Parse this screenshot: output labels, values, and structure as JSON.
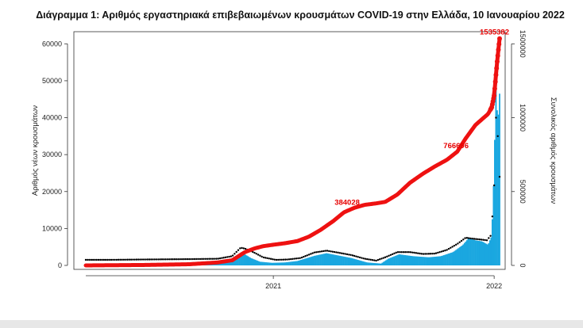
{
  "chart_data": {
    "type": "bar",
    "title": "Διάγραμμα 1: Αριθμός εργαστηριακά επιβεβαιωμένων κρουσμάτων COVID-19 στην Ελλάδα, 10 Ιανουαρίου 2022",
    "ylabel": "Αριθμός νέων κρουσμάτων",
    "y2label": "Συνολικός αριθμός κρουσμάτων",
    "ylim": [
      0,
      65000
    ],
    "y2lim": [
      0,
      1625000
    ],
    "yticks": [
      0,
      10000,
      20000,
      30000,
      40000,
      50000,
      60000
    ],
    "y2ticks": [
      0,
      500000,
      1000000,
      1500000
    ],
    "xlim": [
      "2020-02-26",
      "2022-01-10"
    ],
    "xticks": [
      {
        "date": "2021-01-01",
        "label": "2021"
      },
      {
        "date": "2022-01-01",
        "label": "2022"
      }
    ],
    "series": [
      {
        "kind": "bar",
        "axis": "left",
        "color": "#1aa7e0",
        "x": [
          "2020-03-01",
          "2020-05-01",
          "2020-07-01",
          "2020-08-15",
          "2020-10-01",
          "2020-10-20",
          "2020-11-05",
          "2020-11-12",
          "2020-11-25",
          "2020-12-10",
          "2020-12-30",
          "2021-01-20",
          "2021-02-10",
          "2021-03-10",
          "2021-03-30",
          "2021-04-15",
          "2021-05-10",
          "2021-06-05",
          "2021-06-28",
          "2021-07-10",
          "2021-07-28",
          "2021-08-20",
          "2021-09-15",
          "2021-10-05",
          "2021-10-25",
          "2021-11-10",
          "2021-11-20",
          "2021-12-01",
          "2021-12-12",
          "2021-12-22",
          "2021-12-28",
          "2022-01-01",
          "2022-01-04",
          "2022-01-07",
          "2022-01-10"
        ],
        "values": [
          30,
          40,
          20,
          250,
          500,
          1000,
          2800,
          3300,
          2000,
          1000,
          700,
          800,
          1200,
          2600,
          3300,
          2800,
          2000,
          800,
          500,
          1800,
          3000,
          2500,
          2200,
          2500,
          3600,
          5500,
          7400,
          6800,
          6500,
          5600,
          8000,
          26000,
          50000,
          38000,
          46500
        ]
      },
      {
        "kind": "points",
        "axis": "left",
        "color": "#000000",
        "x": [
          "2020-02-26",
          "2020-04-01",
          "2020-06-01",
          "2020-08-15",
          "2020-10-01",
          "2020-10-25",
          "2020-11-08",
          "2020-11-16",
          "2020-11-30",
          "2020-12-15",
          "2021-01-05",
          "2021-01-25",
          "2021-02-15",
          "2021-03-10",
          "2021-03-30",
          "2021-04-20",
          "2021-05-10",
          "2021-06-01",
          "2021-06-20",
          "2021-07-05",
          "2021-07-25",
          "2021-08-15",
          "2021-09-05",
          "2021-09-25",
          "2021-10-15",
          "2021-11-01",
          "2021-11-15",
          "2021-11-28",
          "2021-12-10",
          "2021-12-20",
          "2021-12-26",
          "2021-12-30",
          "2022-01-02",
          "2022-01-04",
          "2022-01-06",
          "2022-01-08",
          "2022-01-10"
        ],
        "values": [
          1500,
          1500,
          1600,
          1700,
          1800,
          2500,
          4800,
          4500,
          3500,
          2200,
          1500,
          1600,
          2000,
          3500,
          4000,
          3400,
          2800,
          1800,
          1300,
          2200,
          3600,
          3600,
          3100,
          3200,
          4200,
          5800,
          7500,
          7200,
          7000,
          6800,
          8000,
          15000,
          25000,
          40000,
          33000,
          37000,
          24000
        ]
      },
      {
        "kind": "line",
        "axis": "right",
        "color": "#ee1111",
        "x": [
          "2020-02-26",
          "2020-06-01",
          "2020-08-15",
          "2020-10-01",
          "2020-10-25",
          "2020-11-15",
          "2020-12-01",
          "2020-12-15",
          "2021-01-01",
          "2021-01-20",
          "2021-02-10",
          "2021-03-01",
          "2021-03-20",
          "2021-04-10",
          "2021-04-28",
          "2021-05-15",
          "2021-06-01",
          "2021-06-20",
          "2021-07-05",
          "2021-07-25",
          "2021-08-15",
          "2021-09-05",
          "2021-09-25",
          "2021-10-15",
          "2021-11-01",
          "2021-11-15",
          "2021-12-01",
          "2021-12-12",
          "2021-12-22",
          "2021-12-28",
          "2022-01-01",
          "2022-01-04",
          "2022-01-06",
          "2022-01-08",
          "2022-01-10"
        ],
        "values": [
          0,
          3000,
          8000,
          20000,
          35000,
          90000,
          115000,
          130000,
          140000,
          150000,
          165000,
          195000,
          240000,
          300000,
          360000,
          390000,
          410000,
          420000,
          430000,
          480000,
          560000,
          620000,
          670000,
          715000,
          770000,
          860000,
          950000,
          990000,
          1025000,
          1070000,
          1150000,
          1290000,
          1380000,
          1460000,
          1535382
        ]
      }
    ],
    "annotations": [
      {
        "text": "384028",
        "x": "2021-05-03",
        "y": 384028,
        "axis": "right"
      },
      {
        "text": "766696",
        "x": "2021-10-30",
        "y": 766696,
        "axis": "right"
      },
      {
        "text": "1535382",
        "x": "2022-01-10",
        "y": 1535382,
        "axis": "right"
      }
    ],
    "grid": false,
    "legend": "none"
  }
}
